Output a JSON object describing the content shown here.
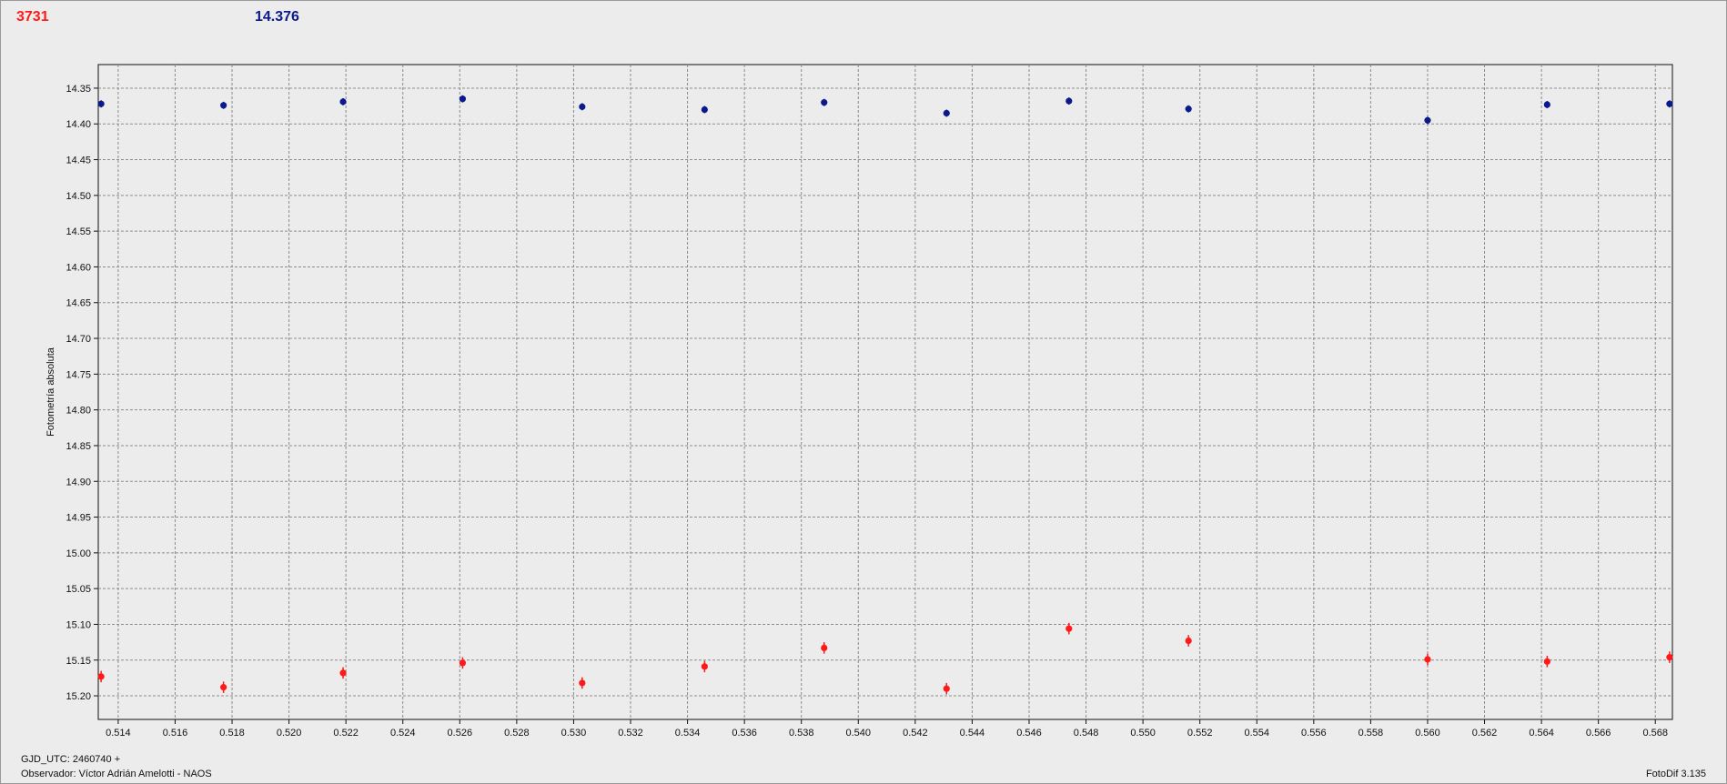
{
  "header": {
    "left_value": "3731",
    "right_value": "14.376"
  },
  "footer": {
    "gjd": "GJD_UTC: 2460740 +",
    "observer": "Observador: Víctor Adrián Amelotti - NAOS",
    "version": "FotoDif 3.135"
  },
  "colors": {
    "series_red": "#ff1a1a",
    "series_blue": "#0a1a8c",
    "grid": "#8c8c8c",
    "plot_bg": "#ececec"
  },
  "chart_data": {
    "type": "scatter",
    "title": "",
    "xlabel": "",
    "ylabel": "Fotometría absoluta",
    "xlim": [
      0.5133,
      0.5686
    ],
    "ylim": [
      15.233,
      14.317
    ],
    "y_inverted": true,
    "grid": true,
    "error_bars": true,
    "x_ticks": [
      "0.514",
      "0.516",
      "0.518",
      "0.520",
      "0.522",
      "0.524",
      "0.526",
      "0.528",
      "0.530",
      "0.532",
      "0.534",
      "0.536",
      "0.538",
      "0.540",
      "0.542",
      "0.544",
      "0.546",
      "0.548",
      "0.550",
      "0.552",
      "0.554",
      "0.556",
      "0.558",
      "0.560",
      "0.562",
      "0.564",
      "0.566",
      "0.568"
    ],
    "y_ticks": [
      "14.35",
      "14.40",
      "14.45",
      "14.50",
      "14.55",
      "14.60",
      "14.65",
      "14.70",
      "14.75",
      "14.80",
      "14.85",
      "14.90",
      "14.95",
      "15.00",
      "15.05",
      "15.10",
      "15.15",
      "15.20"
    ],
    "series": [
      {
        "color": "#0a1a8c",
        "points": [
          {
            "x": 0.5134,
            "y": 14.372,
            "err": 0.005
          },
          {
            "x": 0.5177,
            "y": 14.374,
            "err": 0.005
          },
          {
            "x": 0.5219,
            "y": 14.369,
            "err": 0.005
          },
          {
            "x": 0.5261,
            "y": 14.365,
            "err": 0.005
          },
          {
            "x": 0.5303,
            "y": 14.376,
            "err": 0.005
          },
          {
            "x": 0.5346,
            "y": 14.38,
            "err": 0.005
          },
          {
            "x": 0.5388,
            "y": 14.37,
            "err": 0.005
          },
          {
            "x": 0.5431,
            "y": 14.385,
            "err": 0.005
          },
          {
            "x": 0.5474,
            "y": 14.368,
            "err": 0.005
          },
          {
            "x": 0.5516,
            "y": 14.379,
            "err": 0.005
          },
          {
            "x": 0.56,
            "y": 14.395,
            "err": 0.005
          },
          {
            "x": 0.5642,
            "y": 14.373,
            "err": 0.005
          },
          {
            "x": 0.5685,
            "y": 14.372,
            "err": 0.005
          }
        ]
      },
      {
        "color": "#ff1a1a",
        "points": [
          {
            "x": 0.5134,
            "y": 15.173,
            "err": 0.008
          },
          {
            "x": 0.5177,
            "y": 15.188,
            "err": 0.008
          },
          {
            "x": 0.5219,
            "y": 15.168,
            "err": 0.008
          },
          {
            "x": 0.5261,
            "y": 15.154,
            "err": 0.008
          },
          {
            "x": 0.5303,
            "y": 15.182,
            "err": 0.008
          },
          {
            "x": 0.5346,
            "y": 15.159,
            "err": 0.008
          },
          {
            "x": 0.5388,
            "y": 15.133,
            "err": 0.008
          },
          {
            "x": 0.5431,
            "y": 15.19,
            "err": 0.008
          },
          {
            "x": 0.5474,
            "y": 15.106,
            "err": 0.008
          },
          {
            "x": 0.5516,
            "y": 15.123,
            "err": 0.008
          },
          {
            "x": 0.56,
            "y": 15.149,
            "err": 0.008
          },
          {
            "x": 0.5642,
            "y": 15.152,
            "err": 0.008
          },
          {
            "x": 0.5685,
            "y": 15.146,
            "err": 0.008
          }
        ]
      }
    ]
  }
}
